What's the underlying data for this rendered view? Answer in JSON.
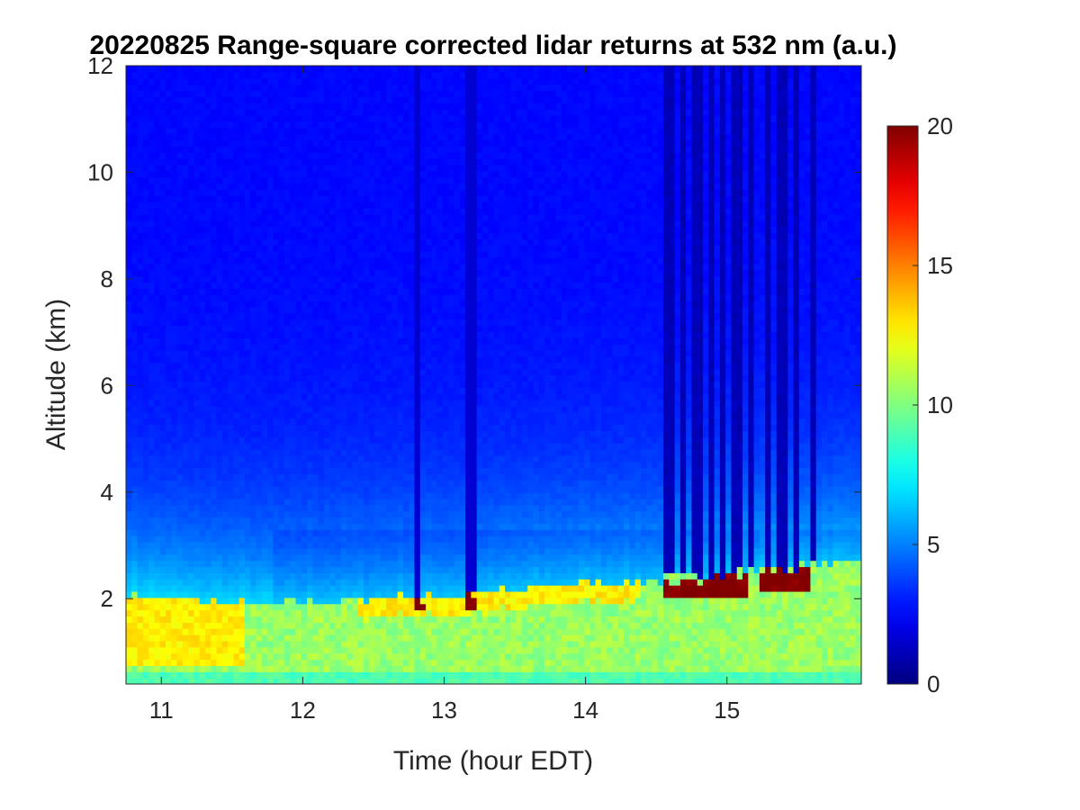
{
  "chart_data": {
    "type": "heatmap",
    "title": "20220825  Range-square corrected lidar returns at 532 nm (a.u.)",
    "xlabel": "Time (hour EDT)",
    "ylabel": "Altitude (km)",
    "xlim": [
      10.75,
      15.95
    ],
    "ylim": [
      0.4,
      12
    ],
    "xticks": [
      "11",
      "12",
      "13",
      "14",
      "15"
    ],
    "yticks": [
      "2",
      "4",
      "6",
      "8",
      "10",
      "12"
    ],
    "colormap": "jet",
    "colorbar": {
      "range": [
        0,
        20
      ],
      "ticks": [
        "0",
        "5",
        "10",
        "15",
        "20"
      ]
    },
    "grid": false,
    "features": {
      "boundary_layer_top_km": [
        {
          "time": 10.75,
          "alt": 2.1
        },
        {
          "time": 11.25,
          "alt": 1.95
        },
        {
          "time": 11.75,
          "alt": 1.9
        },
        {
          "time": 12.0,
          "alt": 1.95
        },
        {
          "time": 12.4,
          "alt": 2.0
        },
        {
          "time": 12.8,
          "alt": 2.05
        },
        {
          "time": 13.2,
          "alt": 2.1
        },
        {
          "time": 13.6,
          "alt": 2.2
        },
        {
          "time": 14.0,
          "alt": 2.3
        },
        {
          "time": 14.5,
          "alt": 2.35
        },
        {
          "time": 15.0,
          "alt": 2.5
        },
        {
          "time": 15.5,
          "alt": 2.6
        },
        {
          "time": 15.95,
          "alt": 2.75
        }
      ],
      "spike_times": [
        12.82,
        13.19,
        14.57,
        14.62,
        14.7,
        14.79,
        14.89,
        14.97,
        15.07,
        15.17,
        15.29,
        15.39,
        15.5,
        15.62
      ],
      "cloud_segments": [
        {
          "t0": 14.55,
          "t1": 14.92,
          "alt_bottom": 2.0,
          "alt_top": 2.35
        },
        {
          "t0": 14.92,
          "t1": 15.15,
          "alt_bottom": 2.0,
          "alt_top": 2.45
        },
        {
          "t0": 15.22,
          "t1": 15.6,
          "alt_bottom": 2.15,
          "alt_top": 2.55
        },
        {
          "t0": 12.78,
          "t1": 12.86,
          "alt_bottom": 1.75,
          "alt_top": 2.0
        },
        {
          "t0": 13.14,
          "t1": 13.24,
          "alt_bottom": 1.8,
          "alt_top": 2.05
        }
      ]
    }
  }
}
